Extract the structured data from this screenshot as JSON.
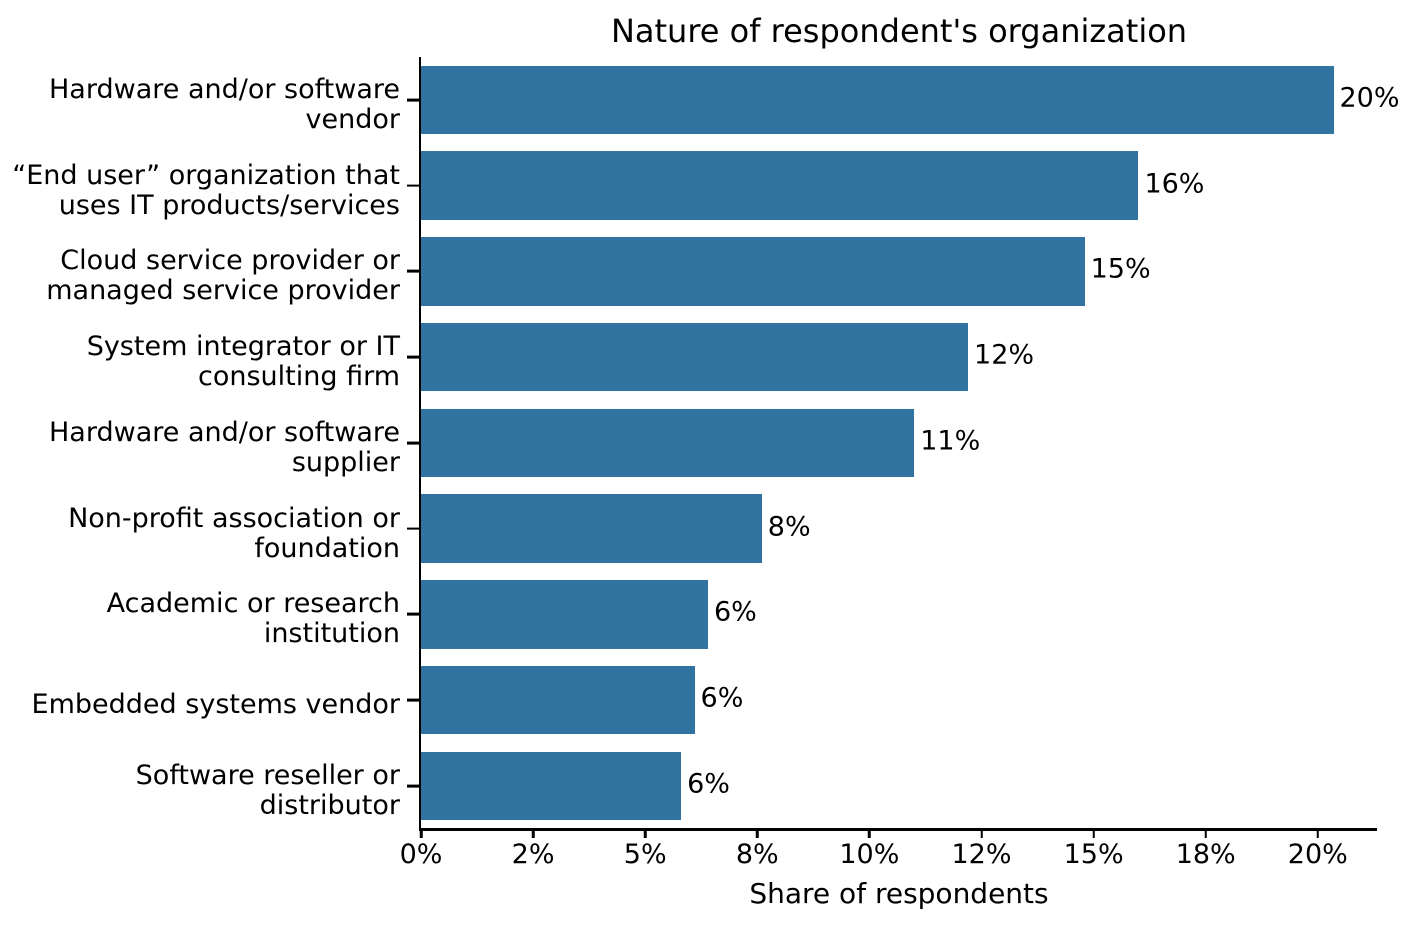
{
  "chart_data": {
    "type": "barh",
    "title": "Nature of respondent's organization",
    "xlabel": "Share of respondents",
    "categories": [
      "Hardware and/or software\nvendor",
      "“End user” organization that\nuses IT products/services",
      "Cloud service provider or\nmanaged service provider",
      "System integrator or IT\nconsulting firm",
      "Hardware and/or software\nsupplier",
      "Non-profit association or\nfoundation",
      "Academic or research\ninstitution",
      "Embedded systems vendor",
      "Software reseller or\ndistributor"
    ],
    "values": [
      20.35,
      16.0,
      14.8,
      12.2,
      11.0,
      7.6,
      6.4,
      6.1,
      5.8
    ],
    "value_labels": [
      "20%",
      "16%",
      "15%",
      "12%",
      "11%",
      "8%",
      "6%",
      "6%",
      "6%"
    ],
    "xticks": {
      "values": [
        0,
        2.5,
        5,
        7.5,
        10,
        12.5,
        15,
        17.5,
        20
      ],
      "labels": [
        "0%",
        "2%",
        "5%",
        "8%",
        "10%",
        "12%",
        "15%",
        "18%",
        "20%"
      ]
    },
    "xlim": [
      0,
      21.32
    ],
    "bar_color": "#3274A1",
    "text_color": "#000000",
    "background": "#ffffff",
    "grid": false,
    "legend": null
  }
}
